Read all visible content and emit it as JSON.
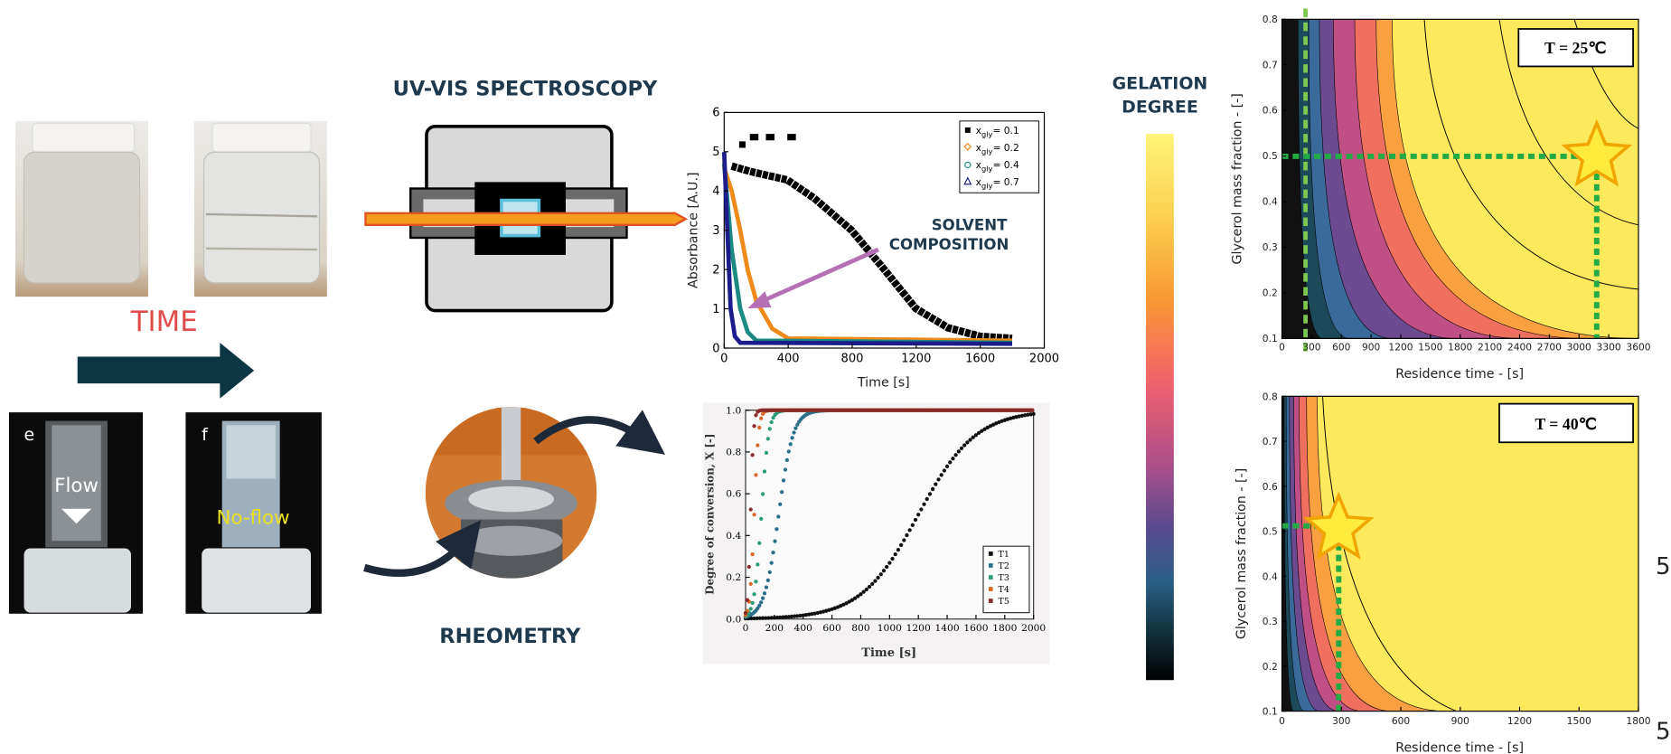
{
  "left": {
    "time_label": "TIME",
    "photos": [
      {
        "letter": "e",
        "label": "Flow"
      },
      {
        "letter": "f",
        "label": "No-flow"
      }
    ]
  },
  "uv_vis": {
    "title": "UV-VIS SPECTROSCOPY",
    "annotation": [
      "SOLVENT",
      "COMPOSITION"
    ]
  },
  "absorbance_plot": {
    "x_label": "Time [s]",
    "y_label": "Absorbance [A.U.]",
    "x_ticks": [
      0,
      400,
      800,
      1200,
      1600,
      2000
    ],
    "y_ticks": [
      0,
      1,
      2,
      3,
      4,
      5,
      6
    ],
    "legend": [
      {
        "symbol": "x",
        "subscript": "gly",
        "text": "= 0.1"
      },
      {
        "symbol": "x",
        "subscript": "gly",
        "text": "= 0.2"
      },
      {
        "symbol": "x",
        "subscript": "gly",
        "text": "= 0.4"
      },
      {
        "symbol": "x",
        "subscript": "gly",
        "text": "= 0.7"
      }
    ]
  },
  "rheometry": {
    "title": "RHEOMETRY"
  },
  "conversion_plot": {
    "x_label": "Time [s]",
    "y_label": "Degree of conversion, X [-]",
    "x_ticks": [
      0,
      200,
      400,
      600,
      800,
      1000,
      1200,
      1400,
      1600,
      1800,
      2000
    ],
    "y_ticks": [
      "0.0",
      "0.2",
      "0.4",
      "0.6",
      "0.8",
      "1.0"
    ],
    "legend": [
      "T1",
      "T2",
      "T3",
      "T4",
      "T5"
    ]
  },
  "gelation": {
    "title": [
      "GELATION",
      "DEGREE"
    ]
  },
  "contour_25": {
    "condition": "T = 25℃",
    "x_label": "Residence time - [s]",
    "y_label": "Glycerol mass fraction - [-]",
    "x_ticks": [
      0,
      300,
      600,
      900,
      1200,
      1500,
      1800,
      2100,
      2400,
      2700,
      3000,
      3300,
      3600
    ],
    "y_ticks": [
      0.1,
      0.2,
      0.3,
      0.4,
      0.5,
      0.6,
      0.7,
      0.8
    ]
  },
  "contour_40": {
    "condition": "T = 40℃",
    "x_label": "Residence time - [s]",
    "y_label": "Glycerol mass fraction - [-]",
    "x_ticks": [
      0,
      300,
      600,
      900,
      1200,
      1500,
      1800
    ],
    "y_ticks": [
      0.1,
      0.2,
      0.3,
      0.4,
      0.5,
      0.6,
      0.7,
      0.8
    ]
  },
  "page_numbers": [
    "5",
    "5"
  ]
}
